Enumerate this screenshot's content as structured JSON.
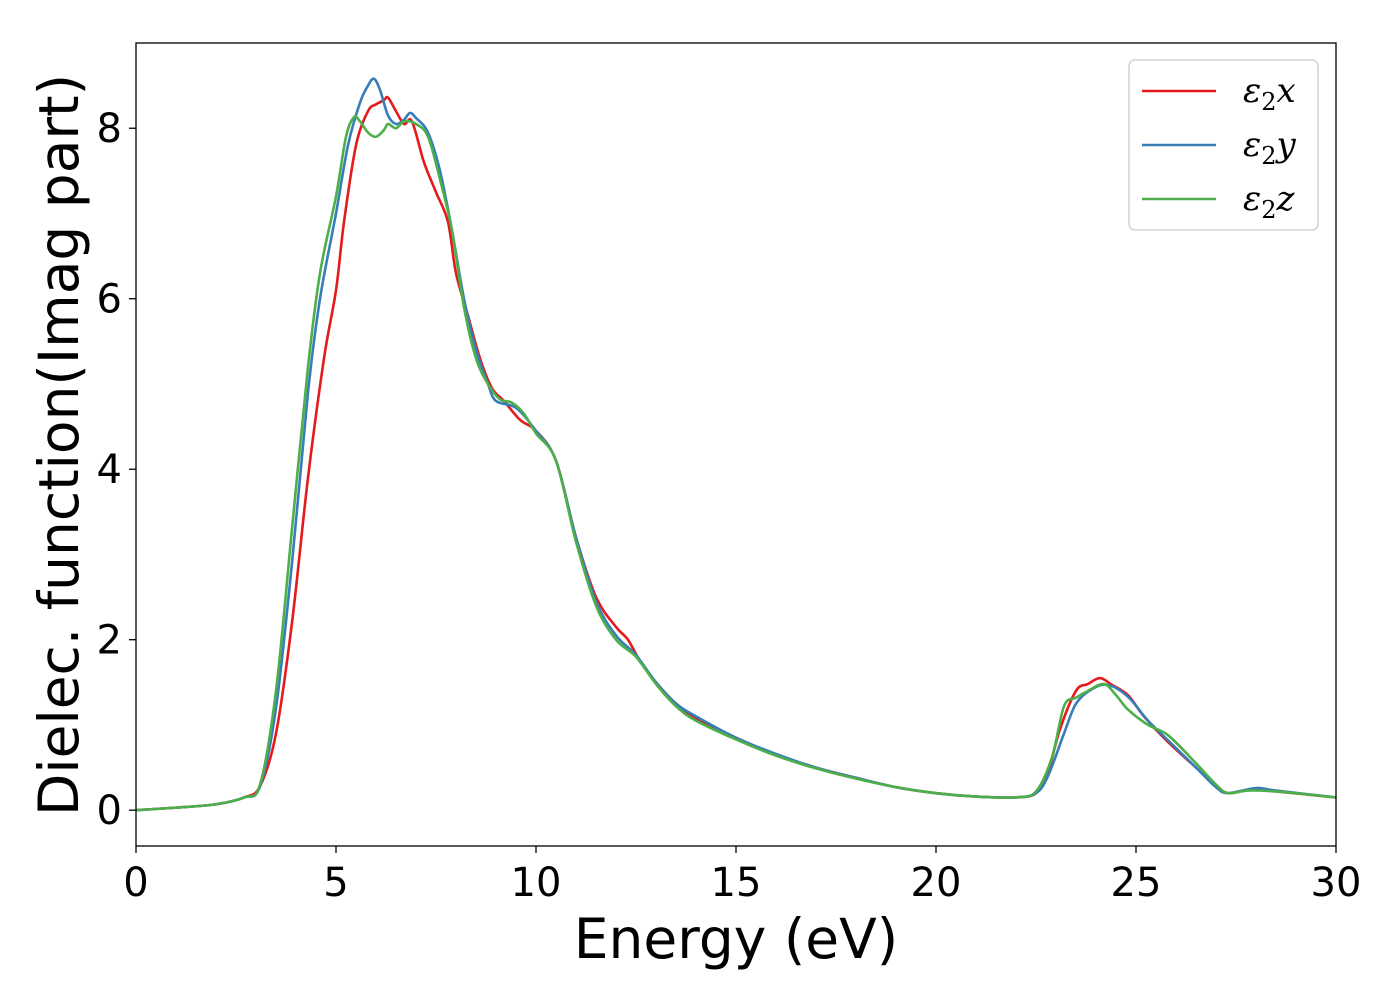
{
  "chart_data": {
    "type": "line",
    "xlabel": "Energy (eV)",
    "ylabel": "Dielec. function(Imag part)",
    "xlim": [
      0,
      30
    ],
    "ylim": [
      -0.42,
      9.0
    ],
    "xticks": [
      0,
      5,
      10,
      15,
      20,
      25,
      30
    ],
    "yticks": [
      0,
      2,
      4,
      6,
      8
    ],
    "grid": false,
    "legend_position": "top-right",
    "series": [
      {
        "name": "ε2x",
        "legend": {
          "base": "ε",
          "sub": "2",
          "suffix": "x"
        },
        "color": "#e41a1c",
        "points": [
          [
            0,
            0
          ],
          [
            1,
            0.03
          ],
          [
            2,
            0.07
          ],
          [
            2.7,
            0.15
          ],
          [
            3.1,
            0.28
          ],
          [
            3.5,
            0.9
          ],
          [
            3.9,
            2.2
          ],
          [
            4.3,
            3.9
          ],
          [
            4.7,
            5.3
          ],
          [
            5.0,
            6.1
          ],
          [
            5.2,
            6.9
          ],
          [
            5.5,
            7.8
          ],
          [
            5.8,
            8.2
          ],
          [
            6.0,
            8.28
          ],
          [
            6.2,
            8.33
          ],
          [
            6.3,
            8.36
          ],
          [
            6.5,
            8.2
          ],
          [
            6.7,
            8.05
          ],
          [
            6.9,
            8.08
          ],
          [
            7.2,
            7.6
          ],
          [
            7.5,
            7.25
          ],
          [
            7.8,
            6.9
          ],
          [
            8.0,
            6.3
          ],
          [
            8.3,
            5.8
          ],
          [
            8.6,
            5.3
          ],
          [
            8.9,
            4.95
          ],
          [
            9.2,
            4.8
          ],
          [
            9.6,
            4.58
          ],
          [
            10.0,
            4.45
          ],
          [
            10.5,
            4.1
          ],
          [
            11.0,
            3.2
          ],
          [
            11.5,
            2.5
          ],
          [
            12.0,
            2.15
          ],
          [
            12.3,
            2.0
          ],
          [
            12.6,
            1.75
          ],
          [
            13.0,
            1.5
          ],
          [
            13.5,
            1.25
          ],
          [
            14.0,
            1.08
          ],
          [
            15.0,
            0.85
          ],
          [
            16.0,
            0.65
          ],
          [
            17.0,
            0.5
          ],
          [
            18.0,
            0.38
          ],
          [
            19.0,
            0.27
          ],
          [
            20.0,
            0.2
          ],
          [
            21.0,
            0.16
          ],
          [
            22.0,
            0.15
          ],
          [
            22.5,
            0.2
          ],
          [
            22.8,
            0.45
          ],
          [
            23.1,
            0.95
          ],
          [
            23.5,
            1.4
          ],
          [
            23.8,
            1.48
          ],
          [
            24.1,
            1.55
          ],
          [
            24.4,
            1.47
          ],
          [
            24.8,
            1.35
          ],
          [
            25.2,
            1.1
          ],
          [
            25.8,
            0.8
          ],
          [
            26.5,
            0.5
          ],
          [
            27.0,
            0.28
          ],
          [
            27.3,
            0.2
          ],
          [
            27.8,
            0.24
          ],
          [
            28.5,
            0.22
          ],
          [
            30.0,
            0.15
          ]
        ]
      },
      {
        "name": "ε2y",
        "legend": {
          "base": "ε",
          "sub": "2",
          "suffix": "y"
        },
        "color": "#377eb8",
        "points": [
          [
            0,
            0
          ],
          [
            1,
            0.03
          ],
          [
            2,
            0.07
          ],
          [
            2.7,
            0.15
          ],
          [
            3.1,
            0.28
          ],
          [
            3.5,
            1.2
          ],
          [
            3.9,
            2.9
          ],
          [
            4.3,
            4.9
          ],
          [
            4.6,
            6.0
          ],
          [
            5.0,
            7.0
          ],
          [
            5.3,
            7.8
          ],
          [
            5.6,
            8.3
          ],
          [
            5.8,
            8.5
          ],
          [
            5.95,
            8.58
          ],
          [
            6.1,
            8.45
          ],
          [
            6.3,
            8.15
          ],
          [
            6.5,
            8.05
          ],
          [
            6.7,
            8.1
          ],
          [
            6.85,
            8.18
          ],
          [
            7.0,
            8.12
          ],
          [
            7.3,
            7.95
          ],
          [
            7.6,
            7.5
          ],
          [
            7.9,
            6.8
          ],
          [
            8.2,
            6.0
          ],
          [
            8.5,
            5.4
          ],
          [
            8.8,
            5.0
          ],
          [
            9.0,
            4.8
          ],
          [
            9.5,
            4.72
          ],
          [
            10.0,
            4.45
          ],
          [
            10.5,
            4.1
          ],
          [
            11.0,
            3.2
          ],
          [
            11.5,
            2.45
          ],
          [
            12.0,
            2.05
          ],
          [
            12.5,
            1.82
          ],
          [
            13.0,
            1.5
          ],
          [
            13.5,
            1.25
          ],
          [
            14.0,
            1.1
          ],
          [
            15.0,
            0.85
          ],
          [
            16.0,
            0.66
          ],
          [
            17.0,
            0.5
          ],
          [
            18.0,
            0.38
          ],
          [
            19.0,
            0.27
          ],
          [
            20.0,
            0.2
          ],
          [
            21.0,
            0.16
          ],
          [
            22.0,
            0.15
          ],
          [
            22.5,
            0.2
          ],
          [
            22.8,
            0.4
          ],
          [
            23.2,
            0.9
          ],
          [
            23.5,
            1.25
          ],
          [
            23.9,
            1.42
          ],
          [
            24.3,
            1.47
          ],
          [
            24.8,
            1.33
          ],
          [
            25.3,
            1.05
          ],
          [
            25.8,
            0.82
          ],
          [
            26.5,
            0.5
          ],
          [
            27.0,
            0.27
          ],
          [
            27.3,
            0.2
          ],
          [
            28.0,
            0.26
          ],
          [
            28.5,
            0.23
          ],
          [
            30.0,
            0.15
          ]
        ]
      },
      {
        "name": "ε2z",
        "legend": {
          "base": "ε",
          "sub": "2",
          "suffix": "z"
        },
        "color": "#4daf4a",
        "points": [
          [
            0,
            0
          ],
          [
            1,
            0.03
          ],
          [
            2,
            0.07
          ],
          [
            2.7,
            0.15
          ],
          [
            3.1,
            0.3
          ],
          [
            3.5,
            1.4
          ],
          [
            3.9,
            3.3
          ],
          [
            4.3,
            5.2
          ],
          [
            4.6,
            6.3
          ],
          [
            5.0,
            7.2
          ],
          [
            5.25,
            7.9
          ],
          [
            5.45,
            8.13
          ],
          [
            5.6,
            8.08
          ],
          [
            5.8,
            7.95
          ],
          [
            6.0,
            7.9
          ],
          [
            6.2,
            7.98
          ],
          [
            6.3,
            8.05
          ],
          [
            6.5,
            8.0
          ],
          [
            6.7,
            8.08
          ],
          [
            7.0,
            8.05
          ],
          [
            7.3,
            7.9
          ],
          [
            7.6,
            7.4
          ],
          [
            7.9,
            6.8
          ],
          [
            8.2,
            5.9
          ],
          [
            8.5,
            5.3
          ],
          [
            8.8,
            5.0
          ],
          [
            9.1,
            4.82
          ],
          [
            9.4,
            4.78
          ],
          [
            9.7,
            4.65
          ],
          [
            10.0,
            4.42
          ],
          [
            10.5,
            4.1
          ],
          [
            11.0,
            3.15
          ],
          [
            11.5,
            2.4
          ],
          [
            12.0,
            2.0
          ],
          [
            12.5,
            1.8
          ],
          [
            13.0,
            1.48
          ],
          [
            13.5,
            1.22
          ],
          [
            14.0,
            1.05
          ],
          [
            15.0,
            0.83
          ],
          [
            16.0,
            0.64
          ],
          [
            17.0,
            0.49
          ],
          [
            18.0,
            0.37
          ],
          [
            19.0,
            0.27
          ],
          [
            20.0,
            0.2
          ],
          [
            21.0,
            0.16
          ],
          [
            22.0,
            0.15
          ],
          [
            22.5,
            0.22
          ],
          [
            22.9,
            0.62
          ],
          [
            23.2,
            1.22
          ],
          [
            23.5,
            1.32
          ],
          [
            23.8,
            1.4
          ],
          [
            24.2,
            1.48
          ],
          [
            24.5,
            1.35
          ],
          [
            24.8,
            1.18
          ],
          [
            25.3,
            1.0
          ],
          [
            25.8,
            0.88
          ],
          [
            26.5,
            0.55
          ],
          [
            27.0,
            0.3
          ],
          [
            27.3,
            0.2
          ],
          [
            27.8,
            0.23
          ],
          [
            28.5,
            0.22
          ],
          [
            30.0,
            0.15
          ]
        ]
      }
    ]
  }
}
